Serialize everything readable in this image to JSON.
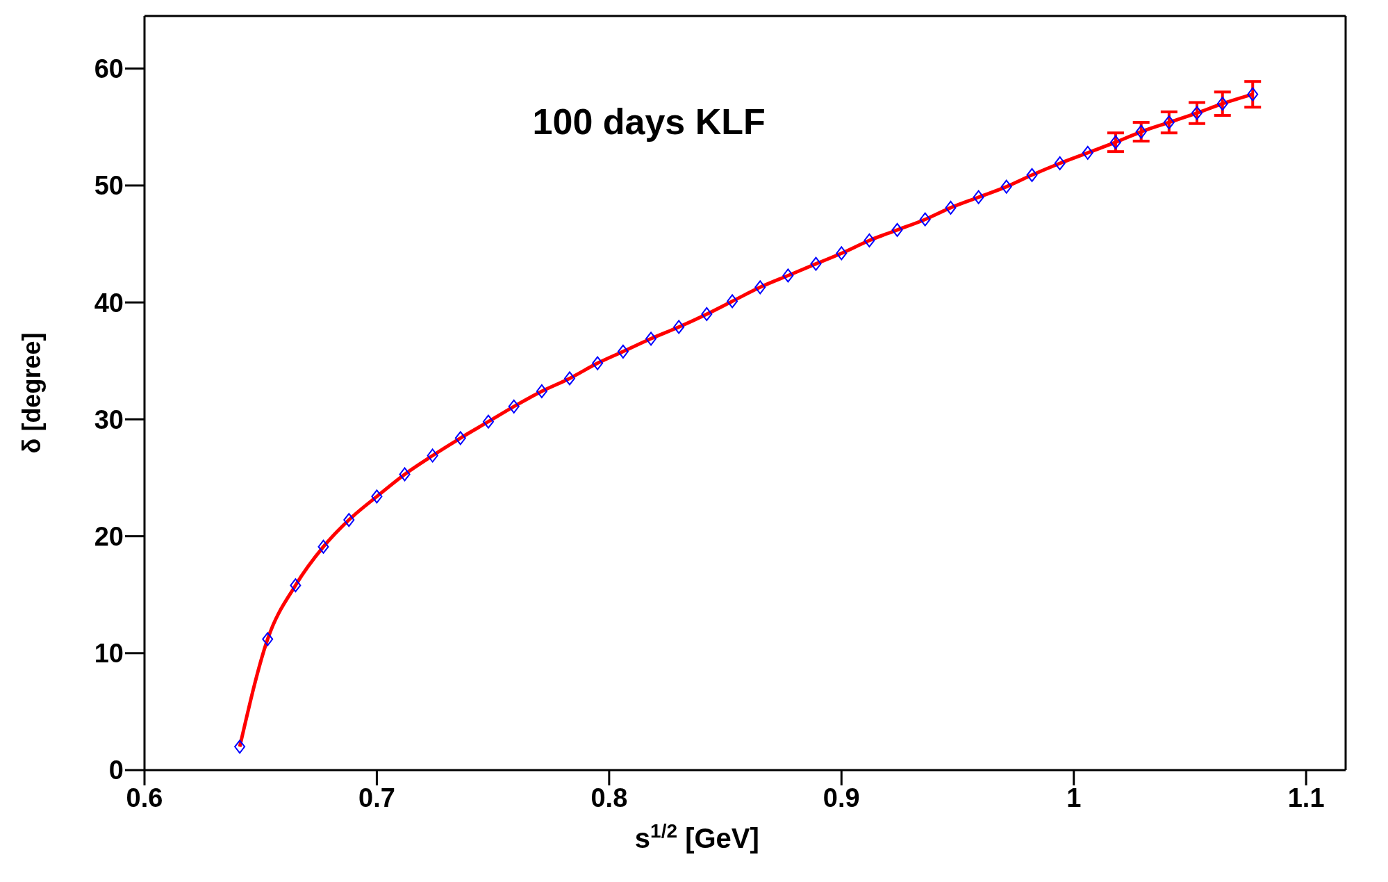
{
  "chart_data": {
    "type": "line",
    "annotations": [
      "100 days KLF"
    ],
    "xlabel": "s$^{1/2}$ [GeV]",
    "ylabel": "δ [degree]",
    "x": [
      0.641,
      0.653,
      0.665,
      0.677,
      0.688,
      0.7,
      0.712,
      0.724,
      0.736,
      0.748,
      0.759,
      0.771,
      0.783,
      0.795,
      0.806,
      0.818,
      0.83,
      0.842,
      0.853,
      0.865,
      0.877,
      0.889,
      0.9,
      0.912,
      0.924,
      0.936,
      0.947,
      0.959,
      0.971,
      0.982,
      0.994,
      1.006,
      1.018,
      1.029,
      1.041,
      1.053,
      1.064,
      1.077
    ],
    "series": [
      {
        "color": "#ff0000",
        "marker": "none",
        "values": [
          2.0,
          11.2,
          15.8,
          19.1,
          21.4,
          23.4,
          25.3,
          26.9,
          28.4,
          29.8,
          31.1,
          32.4,
          33.5,
          34.8,
          35.8,
          36.9,
          37.9,
          39.0,
          40.1,
          41.3,
          42.3,
          43.3,
          44.2,
          45.3,
          46.2,
          47.1,
          48.1,
          49.0,
          49.9,
          50.9,
          51.9,
          52.8,
          53.7,
          54.6,
          55.4,
          56.2,
          57.0,
          57.8
        ],
        "errors": [
          null,
          null,
          null,
          null,
          null,
          null,
          null,
          null,
          null,
          null,
          null,
          null,
          null,
          null,
          null,
          null,
          null,
          null,
          null,
          null,
          null,
          null,
          null,
          null,
          null,
          null,
          null,
          null,
          null,
          null,
          null,
          null,
          0.8,
          0.8,
          0.9,
          0.9,
          1.0,
          1.1
        ]
      },
      {
        "type": "scatter",
        "color": "#0000ff",
        "marker": "diamond",
        "values": [
          2.0,
          11.2,
          15.8,
          19.1,
          21.4,
          23.4,
          25.3,
          26.9,
          28.4,
          29.8,
          31.1,
          32.4,
          33.5,
          34.8,
          35.8,
          36.9,
          37.9,
          39.0,
          40.1,
          41.3,
          42.3,
          43.3,
          44.2,
          45.3,
          46.2,
          47.1,
          48.1,
          49.0,
          49.9,
          50.9,
          51.9,
          52.8,
          53.7,
          54.6,
          55.4,
          56.2,
          57.0,
          57.8
        ]
      }
    ],
    "xlim": [
      0.6,
      1.117
    ],
    "xticks": [
      0.6,
      0.7,
      0.8,
      0.9,
      1,
      1.1
    ],
    "ylim": [
      0,
      64.5
    ],
    "yticks": [
      0,
      10,
      20,
      30,
      40,
      50,
      60
    ]
  }
}
